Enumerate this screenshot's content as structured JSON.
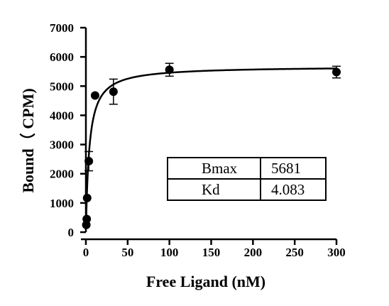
{
  "chart_data": {
    "type": "scatter",
    "xlabel": "Free Ligand (nM)",
    "ylabel": "Bound（ CPM)",
    "xlim": [
      0,
      300
    ],
    "ylim": [
      0,
      7000
    ],
    "x_ticks": [
      "0",
      "50",
      "100",
      "150",
      "200",
      "250",
      "300"
    ],
    "y_ticks": [
      "0",
      "1000",
      "2000",
      "3000",
      "4000",
      "5000",
      "6000",
      "7000"
    ],
    "grid": false,
    "series": [
      {
        "points": [
          {
            "x": 0.5,
            "y": 250,
            "err": 0
          },
          {
            "x": 1,
            "y": 450,
            "err": 0
          },
          {
            "x": 1.5,
            "y": 1170,
            "err": 0
          },
          {
            "x": 3.5,
            "y": 2430,
            "err": 330
          },
          {
            "x": 11,
            "y": 4680,
            "err": 0
          },
          {
            "x": 33,
            "y": 4810,
            "err": 430
          },
          {
            "x": 100,
            "y": 5560,
            "err": 220
          },
          {
            "x": 300,
            "y": 5480,
            "err": 200
          }
        ]
      }
    ],
    "fit": {
      "model": "one-site specific binding",
      "bmax": 5681,
      "kd": 4.083
    },
    "results_table": [
      {
        "label": "Bmax",
        "value": "5681"
      },
      {
        "label": "Kd",
        "value": "4.083"
      }
    ]
  }
}
